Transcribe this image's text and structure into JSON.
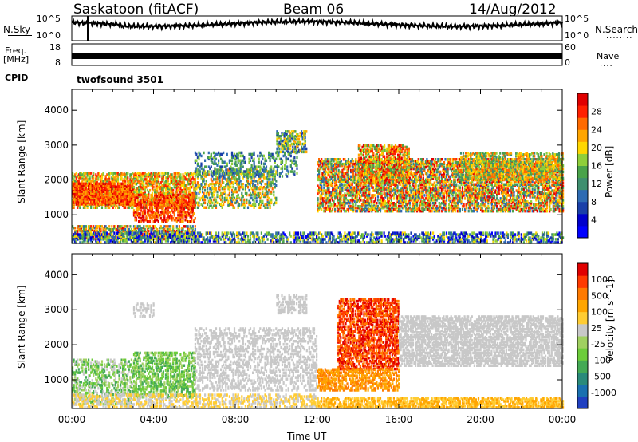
{
  "header": {
    "station": "Saskatoon (fitACF)",
    "beam": "Beam 06",
    "date": "14/Aug/2012"
  },
  "upper_panels": {
    "nsky": {
      "label": "N.Sky",
      "ticks_left": [
        "10^5",
        "10^0"
      ],
      "ticks_right": [
        "10^5",
        "10^0"
      ],
      "right_label": "N.Search"
    },
    "freq": {
      "label_line1": "Freq.",
      "label_line2": "[MHz]",
      "ticks_left": [
        "18",
        "8"
      ],
      "ticks_right": [
        "60",
        "0"
      ],
      "right_label": "Nave"
    },
    "cpid": {
      "label": "CPID",
      "program": "twofsound 3501"
    }
  },
  "chart_data": [
    {
      "type": "heatmap",
      "title": "Power",
      "xlabel": "Time UT",
      "ylabel": "Slant Range [km]",
      "x_ticks": [
        "00:00",
        "04:00",
        "08:00",
        "12:00",
        "16:00",
        "20:00",
        "00:00"
      ],
      "xlim_hours": [
        0,
        24
      ],
      "y_ticks": [
        1000,
        2000,
        3000,
        4000
      ],
      "ylim": [
        180,
        4600
      ],
      "colorbar": {
        "label": "Power [dB]",
        "ticks": [
          "28",
          "24",
          "20",
          "16",
          "12",
          "8",
          "4"
        ],
        "colors": [
          "#0000ff",
          "#0000cc",
          "#1a3fa8",
          "#2e6bb3",
          "#3f8f6f",
          "#4aa34a",
          "#8fcf3a",
          "#ffd700",
          "#ffa500",
          "#ff6a00",
          "#ff2000",
          "#e00000"
        ]
      },
      "grid": false
    },
    {
      "type": "heatmap",
      "title": "Velocity",
      "xlabel": "Time UT",
      "ylabel": "Slant Range [km]",
      "x_ticks": [
        "00:00",
        "04:00",
        "08:00",
        "12:00",
        "16:00",
        "20:00",
        "00:00"
      ],
      "xlim_hours": [
        0,
        24
      ],
      "y_ticks": [
        1000,
        2000,
        3000,
        4000
      ],
      "ylim": [
        180,
        4600
      ],
      "colorbar": {
        "label": "Velocity [m s^-1]",
        "ticks": [
          "1000",
          "500",
          "100",
          "25",
          "-25",
          "-100",
          "-500",
          "-1000"
        ],
        "colors": [
          "#2040c0",
          "#1a70b0",
          "#2a8a7a",
          "#44aa55",
          "#6ccc3a",
          "#a0d060",
          "#c8c8c8",
          "#ffcc33",
          "#ffa500",
          "#ff7a00",
          "#ff3a00",
          "#e00000"
        ]
      },
      "grid": false
    }
  ]
}
